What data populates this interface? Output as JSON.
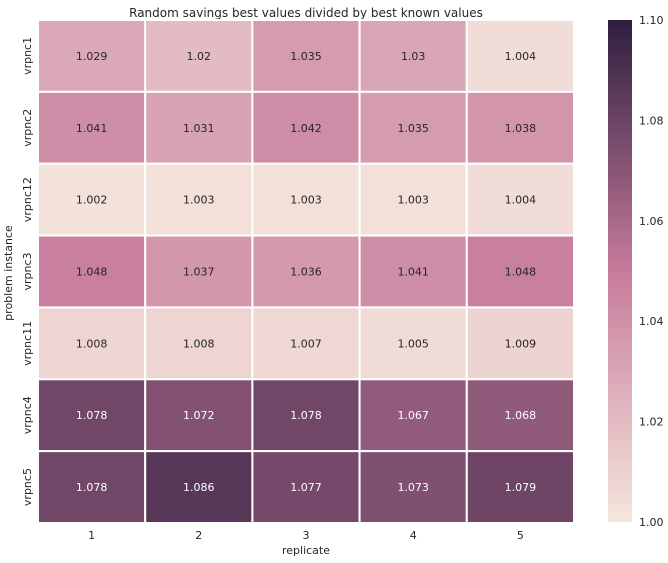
{
  "chart_data": {
    "type": "heatmap",
    "title": "Random savings best values divided by best known values",
    "xlabel": "replicate",
    "ylabel": "problem instance",
    "x_categories": [
      "1",
      "2",
      "3",
      "4",
      "5"
    ],
    "y_categories": [
      "vrpnc1",
      "vrpnc2",
      "vrpnc12",
      "vrpnc3",
      "vrpnc11",
      "vrpnc4",
      "vrpnc5"
    ],
    "values": [
      [
        1.029,
        1.02,
        1.035,
        1.03,
        1.004
      ],
      [
        1.041,
        1.031,
        1.042,
        1.035,
        1.038
      ],
      [
        1.002,
        1.003,
        1.003,
        1.003,
        1.004
      ],
      [
        1.048,
        1.037,
        1.036,
        1.041,
        1.048
      ],
      [
        1.008,
        1.008,
        1.007,
        1.005,
        1.009
      ],
      [
        1.078,
        1.072,
        1.078,
        1.067,
        1.068
      ],
      [
        1.078,
        1.086,
        1.077,
        1.073,
        1.079
      ]
    ],
    "value_labels": [
      [
        "1.029",
        "1.02",
        "1.035",
        "1.03",
        "1.004"
      ],
      [
        "1.041",
        "1.031",
        "1.042",
        "1.035",
        "1.038"
      ],
      [
        "1.002",
        "1.003",
        "1.003",
        "1.003",
        "1.004"
      ],
      [
        "1.048",
        "1.037",
        "1.036",
        "1.041",
        "1.048"
      ],
      [
        "1.008",
        "1.008",
        "1.007",
        "1.005",
        "1.009"
      ],
      [
        "1.078",
        "1.072",
        "1.078",
        "1.067",
        "1.068"
      ],
      [
        "1.078",
        "1.086",
        "1.077",
        "1.073",
        "1.079"
      ]
    ],
    "colorbar": {
      "vmin": 1.0,
      "vmax": 1.1,
      "ticks": [
        "1.00",
        "1.02",
        "1.04",
        "1.06",
        "1.08",
        "1.10"
      ],
      "color_low": "#f5e6dd",
      "color_mid": "#c77b9b",
      "color_high": "#2d1e3e"
    },
    "cell_border_color": "#ffffff",
    "label_color_light": "#262626",
    "label_color_dark": "#ffffff"
  }
}
